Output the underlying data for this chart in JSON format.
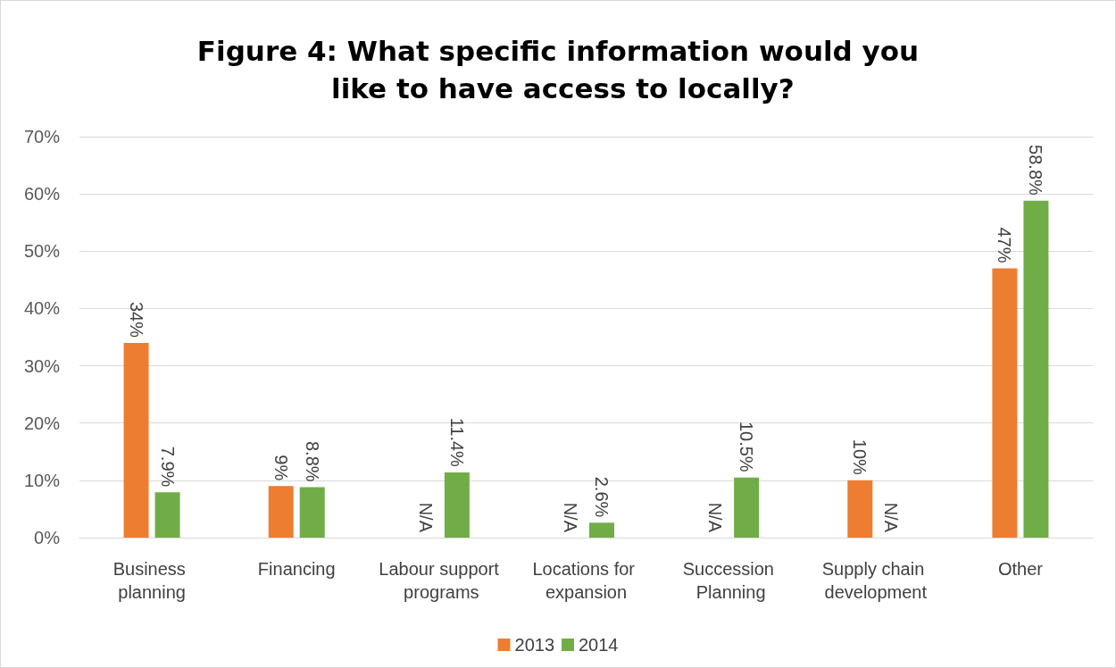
{
  "chart_data": {
    "type": "bar",
    "title": "Figure 4: What specific information would you like to have access to locally?",
    "categories": [
      "Business planning",
      "Financing",
      "Labour support programs",
      "Locations for expansion",
      "Succession Planning",
      "Supply chain development",
      "Other"
    ],
    "series": [
      {
        "name": "2013",
        "color": "#ed7d31",
        "values": [
          34,
          9,
          null,
          null,
          null,
          10,
          47
        ],
        "value_labels": [
          "34%",
          "9%",
          "N/A",
          "N/A",
          "N/A",
          "10%",
          "47%"
        ]
      },
      {
        "name": "2014",
        "color": "#70ad47",
        "values": [
          7.9,
          8.8,
          11.4,
          2.6,
          10.5,
          null,
          58.8
        ],
        "value_labels": [
          "7.9%",
          "8.8%",
          "11.4%",
          "2.6%",
          "10.5%",
          "N/A",
          "58.8%"
        ]
      }
    ],
    "ylim": [
      0,
      70
    ],
    "yticks": [
      {
        "value": 0,
        "label": "0%"
      },
      {
        "value": 10,
        "label": "10%"
      },
      {
        "value": 20,
        "label": "20%"
      },
      {
        "value": 30,
        "label": "30%"
      },
      {
        "value": 40,
        "label": "40%"
      },
      {
        "value": 50,
        "label": "50%"
      },
      {
        "value": 60,
        "label": "60%"
      },
      {
        "value": 70,
        "label": "70%"
      }
    ],
    "grid": true,
    "legend": "bottom"
  }
}
